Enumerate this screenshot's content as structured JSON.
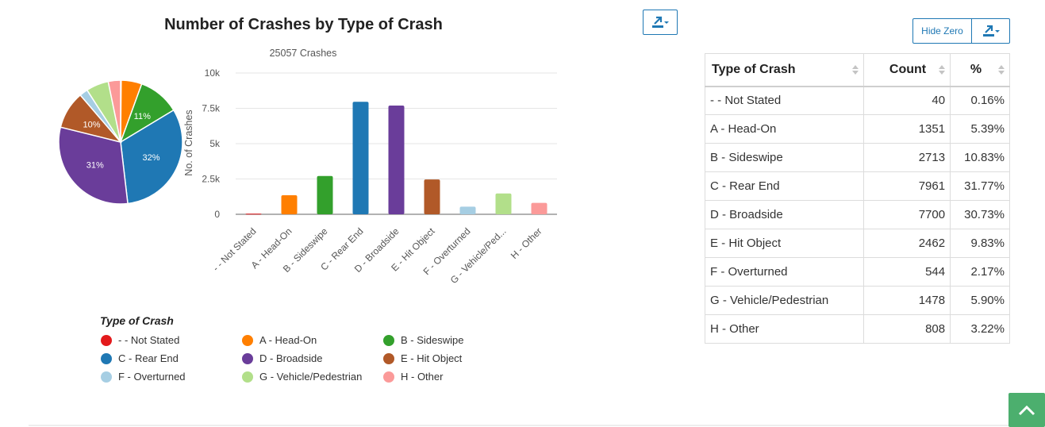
{
  "chart": {
    "title": "Number of Crashes by Type of Crash",
    "subtitle": "25057 Crashes",
    "export_icon": "download-icon"
  },
  "chart_data": [
    {
      "type": "pie",
      "title": "Number of Crashes by Type of Crash",
      "labels": [
        "- - Not Stated",
        "A - Head-On",
        "B - Sideswipe",
        "C - Rear End",
        "D - Broadside",
        "E - Hit Object",
        "F - Overturned",
        "G - Vehicle/Pedestrian",
        "H - Other"
      ],
      "values": [
        40,
        1351,
        2713,
        7961,
        7700,
        2462,
        544,
        1478,
        808
      ],
      "data_labels": [
        "",
        "",
        "11%",
        "32%",
        "31%",
        "10%",
        "",
        "",
        ""
      ]
    },
    {
      "type": "bar",
      "subtitle": "25057 Crashes",
      "categories": [
        "- - Not Stated",
        "A - Head-On",
        "B - Sideswipe",
        "C - Rear End",
        "D - Broadside",
        "E - Hit Object",
        "F - Overturned",
        "G - Vehicle/Ped...",
        "H - Other"
      ],
      "values": [
        40,
        1351,
        2713,
        7961,
        7700,
        2462,
        544,
        1478,
        808
      ],
      "ylabel": "No. of Crashes",
      "ylim": [
        0,
        10000
      ],
      "yticks": [
        0,
        2500,
        5000,
        7500,
        10000
      ],
      "ytick_labels": [
        "0",
        "2.5k",
        "5k",
        "7.5k",
        "10k"
      ],
      "grid": true
    }
  ],
  "colors": [
    "#e31a1c",
    "#ff7f00",
    "#33a02c",
    "#1f78b4",
    "#6a3d9a",
    "#b15928",
    "#a6cee3",
    "#b2df8a",
    "#fb9a99"
  ],
  "legend": {
    "title": "Type of Crash",
    "items": [
      "- - Not Stated",
      "A - Head-On",
      "B - Sideswipe",
      "C - Rear End",
      "D - Broadside",
      "E - Hit Object",
      "F - Overturned",
      "G - Vehicle/Pedestrian",
      "H - Other"
    ]
  },
  "table": {
    "hide_zero_label": "Hide Zero",
    "columns": [
      "Type of Crash",
      "Count",
      "%"
    ],
    "rows": [
      {
        "type": "- - Not Stated",
        "count": "40",
        "pct": "0.16%"
      },
      {
        "type": "A - Head-On",
        "count": "1351",
        "pct": "5.39%"
      },
      {
        "type": "B - Sideswipe",
        "count": "2713",
        "pct": "10.83%"
      },
      {
        "type": "C - Rear End",
        "count": "7961",
        "pct": "31.77%"
      },
      {
        "type": "D - Broadside",
        "count": "7700",
        "pct": "30.73%"
      },
      {
        "type": "E - Hit Object",
        "count": "2462",
        "pct": "9.83%"
      },
      {
        "type": "F - Overturned",
        "count": "544",
        "pct": "2.17%"
      },
      {
        "type": "G - Vehicle/Pedestrian",
        "count": "1478",
        "pct": "5.90%"
      },
      {
        "type": "H - Other",
        "count": "808",
        "pct": "3.22%"
      }
    ]
  },
  "scroll_top_icon": "chevron-up-icon"
}
